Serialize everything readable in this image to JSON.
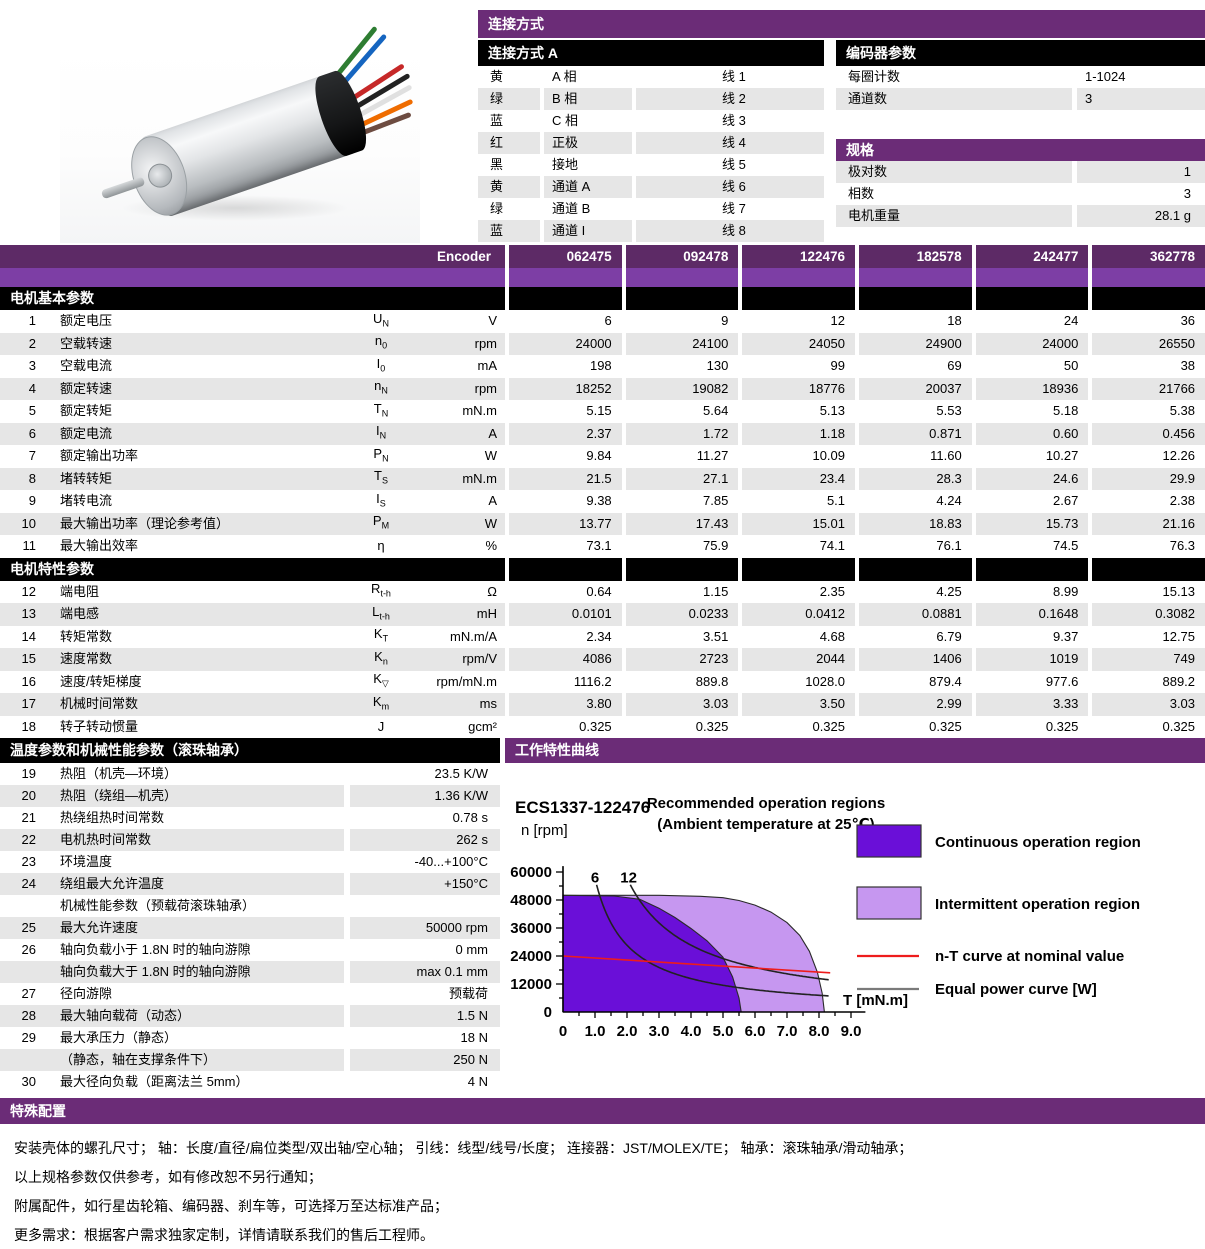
{
  "connection": {
    "title": "连接方式",
    "sub_title": "连接方式 A",
    "rows": [
      {
        "color": "黄",
        "signal": "A 相",
        "wire": "线 1"
      },
      {
        "color": "绿",
        "signal": "B 相",
        "wire": "线 2"
      },
      {
        "color": "蓝",
        "signal": "C 相",
        "wire": "线 3"
      },
      {
        "color": "红",
        "signal": "正极",
        "wire": "线 4"
      },
      {
        "color": "黑",
        "signal": "接地",
        "wire": "线 5"
      },
      {
        "color": "黄",
        "signal": "通道 A",
        "wire": "线 6"
      },
      {
        "color": "绿",
        "signal": "通道 B",
        "wire": "线 7"
      },
      {
        "color": "蓝",
        "signal": "通道 I",
        "wire": "线 8"
      }
    ]
  },
  "encoder_params": {
    "title": "编码器参数",
    "rows": [
      {
        "label": "每圈计数",
        "value": "1-1024"
      },
      {
        "label": "通道数",
        "value": "3"
      }
    ]
  },
  "specs": {
    "title": "规格",
    "rows": [
      {
        "label": "极对数",
        "value": "1"
      },
      {
        "label": "相数",
        "value": "3"
      },
      {
        "label": "电机重量",
        "value": "28.1 g"
      }
    ]
  },
  "main_table": {
    "encoder_label": "Encoder",
    "columns": [
      "062475",
      "092478",
      "122476",
      "182578",
      "242477",
      "362778"
    ],
    "sections": [
      {
        "title": "电机基本参数",
        "rows": [
          {
            "num": "1",
            "name": "额定电压",
            "sym": "U",
            "sub": "N",
            "unit": "V",
            "values": [
              "6",
              "9",
              "12",
              "18",
              "24",
              "36"
            ]
          },
          {
            "num": "2",
            "name": "空载转速",
            "sym": "n",
            "sub": "0",
            "unit": "rpm",
            "values": [
              "24000",
              "24100",
              "24050",
              "24900",
              "24000",
              "26550"
            ]
          },
          {
            "num": "3",
            "name": "空载电流",
            "sym": "I",
            "sub": "0",
            "unit": "mA",
            "values": [
              "198",
              "130",
              "99",
              "69",
              "50",
              "38"
            ]
          },
          {
            "num": "4",
            "name": "额定转速",
            "sym": "n",
            "sub": "N",
            "unit": "rpm",
            "values": [
              "18252",
              "19082",
              "18776",
              "20037",
              "18936",
              "21766"
            ]
          },
          {
            "num": "5",
            "name": "额定转矩",
            "sym": "T",
            "sub": "N",
            "unit": "mN.m",
            "values": [
              "5.15",
              "5.64",
              "5.13",
              "5.53",
              "5.18",
              "5.38"
            ]
          },
          {
            "num": "6",
            "name": "额定电流",
            "sym": "I",
            "sub": "N",
            "unit": "A",
            "values": [
              "2.37",
              "1.72",
              "1.18",
              "0.871",
              "0.60",
              "0.456"
            ]
          },
          {
            "num": "7",
            "name": "额定输出功率",
            "sym": "P",
            "sub": "N",
            "unit": "W",
            "values": [
              "9.84",
              "11.27",
              "10.09",
              "11.60",
              "10.27",
              "12.26"
            ]
          },
          {
            "num": "8",
            "name": "堵转转矩",
            "sym": "T",
            "sub": "S",
            "unit": "mN.m",
            "values": [
              "21.5",
              "27.1",
              "23.4",
              "28.3",
              "24.6",
              "29.9"
            ]
          },
          {
            "num": "9",
            "name": "堵转电流",
            "sym": "I",
            "sub": "S",
            "unit": "A",
            "values": [
              "9.38",
              "7.85",
              "5.1",
              "4.24",
              "2.67",
              "2.38"
            ]
          },
          {
            "num": "10",
            "name": "最大输出功率（理论参考值）",
            "sym": "P",
            "sub": "M",
            "unit": "W",
            "values": [
              "13.77",
              "17.43",
              "15.01",
              "18.83",
              "15.73",
              "21.16"
            ]
          },
          {
            "num": "11",
            "name": "最大输出效率",
            "sym": "η",
            "sub": "",
            "unit": "%",
            "values": [
              "73.1",
              "75.9",
              "74.1",
              "76.1",
              "74.5",
              "76.3"
            ]
          }
        ]
      },
      {
        "title": "电机特性参数",
        "rows": [
          {
            "num": "12",
            "name": "端电阻",
            "sym": "R",
            "sub": "t-h",
            "unit": "Ω",
            "values": [
              "0.64",
              "1.15",
              "2.35",
              "4.25",
              "8.99",
              "15.13"
            ]
          },
          {
            "num": "13",
            "name": "端电感",
            "sym": "L",
            "sub": "t-h",
            "unit": "mH",
            "values": [
              "0.0101",
              "0.0233",
              "0.0412",
              "0.0881",
              "0.1648",
              "0.3082"
            ]
          },
          {
            "num": "14",
            "name": "转矩常数",
            "sym": "K",
            "sub": "T",
            "unit": "mN.m/A",
            "values": [
              "2.34",
              "3.51",
              "4.68",
              "6.79",
              "9.37",
              "12.75"
            ]
          },
          {
            "num": "15",
            "name": "速度常数",
            "sym": "K",
            "sub": "n",
            "unit": "rpm/V",
            "values": [
              "4086",
              "2723",
              "2044",
              "1406",
              "1019",
              "749"
            ]
          },
          {
            "num": "16",
            "name": "速度/转矩梯度",
            "sym": "K",
            "sub": "▽",
            "unit": "rpm/mN.m",
            "values": [
              "1116.2",
              "889.8",
              "1028.0",
              "879.4",
              "977.6",
              "889.2"
            ]
          },
          {
            "num": "17",
            "name": "机械时间常数",
            "sym": "K",
            "sub": "m",
            "unit": "ms",
            "values": [
              "3.80",
              "3.03",
              "3.50",
              "2.99",
              "3.33",
              "3.03"
            ]
          },
          {
            "num": "18",
            "name": "转子转动惯量",
            "sym": "J",
            "sub": "",
            "unit": "gcm²",
            "values": [
              "0.325",
              "0.325",
              "0.325",
              "0.325",
              "0.325",
              "0.325"
            ]
          }
        ]
      }
    ]
  },
  "temp_section": {
    "title": "温度参数和机械性能参数（滚珠轴承）",
    "rows": [
      {
        "num": "19",
        "name": "热阻（机壳—环境）",
        "value": "23.5 K/W"
      },
      {
        "num": "20",
        "name": "热阻（绕组—机壳）",
        "value": "1.36 K/W"
      },
      {
        "num": "21",
        "name": "热绕组热时间常数",
        "value": "0.78 s"
      },
      {
        "num": "22",
        "name": "电机热时间常数",
        "value": "262 s"
      },
      {
        "num": "23",
        "name": "环境温度",
        "value": "-40...+100°C"
      },
      {
        "num": "24",
        "name": "绕组最大允许温度",
        "value": "+150°C"
      },
      {
        "num": "",
        "name": "机械性能参数（预载荷滚珠轴承）",
        "value": ""
      },
      {
        "num": "25",
        "name": "最大允许速度",
        "value": "50000 rpm"
      },
      {
        "num": "26",
        "name": "轴向负载小于 1.8N 时的轴向游隙",
        "value": "0 mm"
      },
      {
        "num": "",
        "name": "轴向负载大于 1.8N 时的轴向游隙",
        "value": "max 0.1 mm"
      },
      {
        "num": "27",
        "name": "径向游隙",
        "value": "预载荷"
      },
      {
        "num": "28",
        "name": "最大轴向载荷（动态）",
        "value": "1.5 N"
      },
      {
        "num": "29",
        "name": "最大承压力（静态）",
        "value": "18 N"
      },
      {
        "num": "",
        "name": "（静态，轴在支撑条件下）",
        "value": "250 N"
      },
      {
        "num": "30",
        "name": "最大径向负载（距离法兰 5mm）",
        "value": "4 N"
      }
    ]
  },
  "chart": {
    "header": "工作特性曲线",
    "chart_data": {
      "type": "area",
      "model": "ECS1337-122476",
      "title": "Recommended operation  regions",
      "subtitle": "(Ambient temperature at 25℃)",
      "xlabel": "T [mN.m]",
      "ylabel": "n [rpm]",
      "xlim": [
        0,
        9.0
      ],
      "ylim": [
        0,
        60000
      ],
      "x_tick_labels": [
        "0",
        "1.0",
        "2.0",
        "3.0",
        "4.0",
        "5.0",
        "6.0",
        "7.0",
        "8.0",
        "9.0"
      ],
      "y_tick_labels": [
        "0",
        "12000",
        "24000",
        "36000",
        "48000",
        "60000"
      ],
      "regions": [
        {
          "name": "Intermittent operation region",
          "color": "#c697f0",
          "points": [
            [
              0,
              50000
            ],
            [
              3.0,
              50000
            ],
            [
              4.3,
              49600
            ],
            [
              5.0,
              49000
            ],
            [
              5.5,
              47800
            ],
            [
              6.0,
              45800
            ],
            [
              6.5,
              42800
            ],
            [
              7.0,
              38300
            ],
            [
              7.4,
              32800
            ],
            [
              7.7,
              26000
            ],
            [
              7.95,
              17000
            ],
            [
              8.1,
              8000
            ],
            [
              8.17,
              0
            ]
          ]
        },
        {
          "name": "Continuous operation region",
          "color": "#6a0fd8",
          "points": [
            [
              0,
              50000
            ],
            [
              1.6,
              49700
            ],
            [
              2.4,
              48300
            ],
            [
              3.0,
              44500
            ],
            [
              3.5,
              40500
            ],
            [
              4.0,
              35800
            ],
            [
              4.5,
              30500
            ],
            [
              5.0,
              23500
            ],
            [
              5.3,
              15000
            ],
            [
              5.5,
              6000
            ],
            [
              5.57,
              0
            ]
          ]
        }
      ],
      "equal_power_curves": {
        "constant": 9549,
        "values_w": [
          6,
          12
        ],
        "labels": [
          "6",
          "12"
        ],
        "color": "#222222"
      },
      "nT_line": {
        "from": [
          0,
          24000
        ],
        "to": [
          8.35,
          16800
        ],
        "color": "#ee1c1c"
      },
      "legend": [
        {
          "type": "swatch",
          "color": "#6a0fd8",
          "label": "Continuous operation region"
        },
        {
          "type": "swatch",
          "color": "#c697f0",
          "label": "Intermittent operation region"
        },
        {
          "type": "line",
          "color": "#ee1c1c",
          "label": "n-T curve at nominal value"
        },
        {
          "type": "line",
          "color": "#7a7a7a",
          "label": "Equal power curve [W]"
        }
      ]
    }
  },
  "special": {
    "title": "特殊配置",
    "lines": [
      "安装壳体的螺孔尺寸； 轴：长度/直径/扁位类型/双出轴/空心轴； 引线：线型/线号/长度； 连接器：JST/MOLEX/TE； 轴承：滚珠轴承/滑动轴承；",
      "以上规格参数仅供参考，如有修改恕不另行通知；",
      "附属配件，如行星齿轮箱、编码器、刹车等，可选择万至达标准产品；",
      "更多需求：根据客户需求独家定制，详情请联系我们的售后工程师。"
    ]
  }
}
